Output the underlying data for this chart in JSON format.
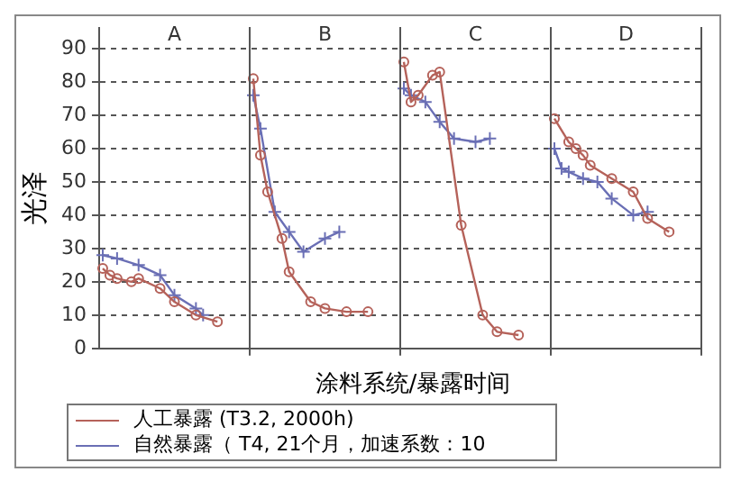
{
  "chart_data": {
    "type": "line",
    "ylabel": "光泽",
    "xlabel": "涂料系统/暴露时间",
    "annotations": [
      "A",
      "B",
      "C",
      "D"
    ],
    "categories": [
      null,
      null,
      null,
      null,
      null,
      null,
      null,
      null,
      null,
      null,
      null,
      null,
      null,
      null,
      null,
      null,
      null,
      null,
      null,
      null,
      null,
      null,
      null,
      null,
      null,
      null,
      null,
      null,
      null,
      null,
      null,
      null,
      null,
      null,
      null,
      null,
      null,
      null,
      null,
      null,
      null,
      null,
      null,
      null,
      null,
      null,
      null,
      null,
      null,
      null,
      null,
      null,
      null,
      null,
      null,
      null,
      null,
      null,
      null,
      null,
      null,
      null,
      null,
      null,
      null,
      null,
      null,
      null,
      null,
      null,
      null,
      null,
      null,
      null,
      null,
      null,
      null,
      null,
      null,
      null,
      null,
      null,
      null,
      null
    ],
    "ylim": [
      0,
      90
    ],
    "yticks": [
      0,
      10,
      20,
      30,
      40,
      50,
      60,
      70,
      80,
      90
    ],
    "grid": "y",
    "legend": "bottom",
    "series": [
      {
        "name": "人工暴露  (T3.2, 2000h)",
        "color": "#b5625a",
        "marker": "circle",
        "values": [
          24,
          22,
          21,
          null,
          20,
          21,
          null,
          null,
          18,
          null,
          14,
          null,
          null,
          10,
          null,
          null,
          8,
          null,
          null,
          null,
          null,
          81,
          58,
          47,
          null,
          33,
          23,
          null,
          null,
          14,
          null,
          12,
          null,
          null,
          11,
          null,
          null,
          11,
          null,
          null,
          null,
          null,
          86,
          74,
          76,
          null,
          82,
          83,
          null,
          null,
          37,
          null,
          null,
          10,
          null,
          5,
          null,
          null,
          4,
          null,
          null,
          null,
          null,
          69,
          null,
          62,
          60,
          58,
          55,
          null,
          null,
          51,
          null,
          null,
          47,
          null,
          39,
          null,
          null,
          35,
          null,
          null,
          null,
          null
        ]
      },
      {
        "name": "自然暴露（ T4, 21个月，加速系数：10",
        "color": "#6a6fb5",
        "marker": "cross",
        "values": [
          28,
          null,
          27,
          null,
          null,
          25,
          null,
          null,
          22,
          null,
          16,
          null,
          null,
          12,
          10,
          null,
          null,
          null,
          null,
          null,
          null,
          76,
          66,
          null,
          41,
          null,
          35,
          null,
          29,
          null,
          null,
          33,
          null,
          35,
          null,
          null,
          null,
          null,
          null,
          null,
          null,
          null,
          78,
          76,
          null,
          74,
          null,
          68,
          null,
          63,
          null,
          null,
          62,
          null,
          63,
          null,
          null,
          null,
          null,
          null,
          null,
          null,
          null,
          60,
          54,
          53,
          null,
          51,
          null,
          50,
          null,
          45,
          null,
          null,
          40,
          null,
          41,
          null,
          null,
          null,
          null,
          null,
          null,
          null
        ]
      }
    ]
  }
}
